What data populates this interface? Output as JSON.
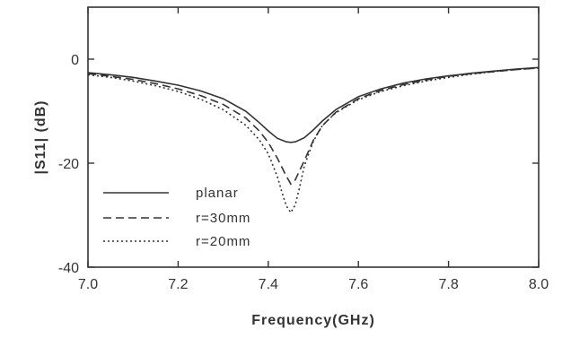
{
  "chart_data": {
    "type": "line",
    "title": "",
    "xlabel": "Frequency(GHz)",
    "ylabel": "|S11| (dB)",
    "xlim": [
      7.0,
      8.0
    ],
    "ylim": [
      -40,
      10
    ],
    "x_ticks": [
      7.0,
      7.2,
      7.4,
      7.6,
      7.8,
      8.0
    ],
    "x_tick_labels": [
      "7.0",
      "7.2",
      "7.4",
      "7.6",
      "7.8",
      "8.0"
    ],
    "y_ticks": [
      -40,
      -20,
      0
    ],
    "y_tick_labels": [
      "-40",
      "-20",
      "0"
    ],
    "legend_position": "bottom-left",
    "grid": false,
    "series": [
      {
        "name": "planar",
        "dash": "solid",
        "x": [
          7.0,
          7.05,
          7.1,
          7.15,
          7.2,
          7.25,
          7.3,
          7.35,
          7.38,
          7.4,
          7.42,
          7.44,
          7.45,
          7.46,
          7.48,
          7.5,
          7.52,
          7.55,
          7.6,
          7.65,
          7.7,
          7.75,
          7.8,
          7.85,
          7.9,
          7.95,
          8.0
        ],
        "y": [
          -2.6,
          -3.0,
          -3.5,
          -4.2,
          -5.0,
          -6.1,
          -7.6,
          -10.0,
          -12.2,
          -13.8,
          -15.2,
          -15.9,
          -16.0,
          -15.9,
          -15.1,
          -13.6,
          -11.9,
          -9.7,
          -7.2,
          -5.7,
          -4.6,
          -3.8,
          -3.2,
          -2.7,
          -2.3,
          -1.9,
          -1.6
        ]
      },
      {
        "name": "r=30mm",
        "dash": "dashed",
        "x": [
          7.0,
          7.05,
          7.1,
          7.15,
          7.2,
          7.25,
          7.3,
          7.35,
          7.38,
          7.4,
          7.42,
          7.44,
          7.45,
          7.46,
          7.48,
          7.5,
          7.52,
          7.55,
          7.6,
          7.65,
          7.7,
          7.75,
          7.8,
          7.85,
          7.9,
          7.95,
          8.0
        ],
        "y": [
          -2.8,
          -3.3,
          -3.9,
          -4.7,
          -5.7,
          -7.0,
          -8.7,
          -11.3,
          -13.8,
          -16.0,
          -19.0,
          -22.5,
          -24.0,
          -23.2,
          -19.5,
          -15.6,
          -12.8,
          -10.2,
          -7.6,
          -6.0,
          -4.9,
          -4.0,
          -3.3,
          -2.8,
          -2.4,
          -2.0,
          -1.7
        ]
      },
      {
        "name": "r=20mm",
        "dash": "dotted",
        "x": [
          7.0,
          7.05,
          7.1,
          7.15,
          7.2,
          7.25,
          7.3,
          7.35,
          7.38,
          7.4,
          7.42,
          7.43,
          7.44,
          7.45,
          7.46,
          7.47,
          7.48,
          7.5,
          7.52,
          7.55,
          7.6,
          7.65,
          7.7,
          7.75,
          7.8,
          7.85,
          7.9,
          7.95,
          8.0
        ],
        "y": [
          -3.0,
          -3.5,
          -4.2,
          -5.1,
          -6.2,
          -7.7,
          -9.7,
          -12.7,
          -15.5,
          -18.2,
          -22.5,
          -25.5,
          -28.2,
          -29.5,
          -28.0,
          -24.5,
          -20.5,
          -15.8,
          -12.8,
          -10.3,
          -7.8,
          -6.2,
          -5.1,
          -4.2,
          -3.5,
          -2.9,
          -2.4,
          -2.0,
          -1.7
        ]
      }
    ]
  }
}
